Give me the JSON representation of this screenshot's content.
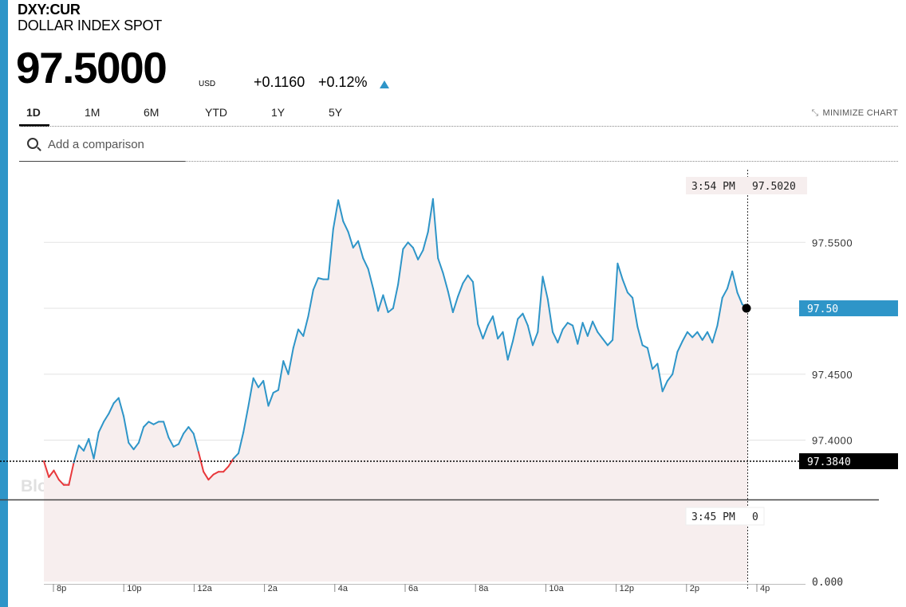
{
  "header": {
    "ticker": "DXY:CUR",
    "name": "DOLLAR INDEX SPOT",
    "price": "97.5000",
    "currency": "USD",
    "change": "+0.1160",
    "change_pct": "+0.12%"
  },
  "tabs": [
    {
      "label": "1D",
      "active": true
    },
    {
      "label": "1M",
      "active": false
    },
    {
      "label": "6M",
      "active": false
    },
    {
      "label": "YTD",
      "active": false
    },
    {
      "label": "1Y",
      "active": false
    },
    {
      "label": "5Y",
      "active": false
    }
  ],
  "minimize_label": "MINIMIZE CHART",
  "compare": {
    "placeholder": "Add a comparison"
  },
  "colors": {
    "accent": "#2e95c8",
    "up": "#2e95c8",
    "down": "#e8383b",
    "fill": "#f7eeee"
  },
  "watermark": "BloombergMarkets",
  "chart_data": {
    "type": "line",
    "y_ticks": [
      "97.5500",
      "97.4500",
      "97.4000"
    ],
    "y_ticks_values": [
      97.55,
      97.45,
      97.4
    ],
    "volume_tick": "0.000",
    "x_ticks": [
      "8p",
      "10p",
      "12a",
      "2a",
      "4a",
      "6a",
      "8a",
      "10a",
      "12p",
      "2p",
      "4p"
    ],
    "ylim": [
      97.355,
      97.61
    ],
    "previous_close": {
      "label": "97.3840",
      "value": 97.384
    },
    "current": {
      "label": "97.50",
      "value": 97.5
    },
    "cursor_price": {
      "time": "3:54 PM",
      "value": "97.5020"
    },
    "cursor_volume": {
      "time": "3:45 PM",
      "value": "0"
    },
    "series": [
      {
        "values": [
          97.384,
          97.372,
          97.377,
          97.37,
          97.366,
          97.366,
          97.383,
          97.396,
          97.392,
          97.401,
          97.386,
          97.406,
          97.414,
          97.42,
          97.428,
          97.432,
          97.418,
          97.398,
          97.393,
          97.398,
          97.41,
          97.414,
          97.412,
          97.414,
          97.414,
          97.402,
          97.395,
          97.397,
          97.405,
          97.41,
          97.405,
          97.391,
          97.376,
          97.37,
          97.374,
          97.376,
          97.376,
          97.38,
          97.386,
          97.39,
          97.406,
          97.426,
          97.447,
          97.44,
          97.445,
          97.426,
          97.436,
          97.438,
          97.46,
          97.45,
          97.47,
          97.484,
          97.479,
          97.494,
          97.514,
          97.523,
          97.522,
          97.522,
          97.56,
          97.582,
          97.566,
          97.558,
          97.546,
          97.551,
          97.538,
          97.53,
          97.515,
          97.498,
          97.51,
          97.497,
          97.5,
          97.518,
          97.545,
          97.55,
          97.546,
          97.537,
          97.544,
          97.558,
          97.583,
          97.538,
          97.527,
          97.513,
          97.497,
          97.509,
          97.519,
          97.525,
          97.52,
          97.488,
          97.477,
          97.487,
          97.494,
          97.477,
          97.482,
          97.461,
          97.475,
          97.492,
          97.496,
          97.487,
          97.472,
          97.482,
          97.524,
          97.507,
          97.482,
          97.474,
          97.484,
          97.489,
          97.487,
          97.473,
          97.489,
          97.479,
          97.49,
          97.482,
          97.477,
          97.472,
          97.476,
          97.534,
          97.522,
          97.512,
          97.508,
          97.486,
          97.472,
          97.47,
          97.454,
          97.458,
          97.437,
          97.445,
          97.45,
          97.467,
          97.475,
          97.482,
          97.478,
          97.482,
          97.476,
          97.482,
          97.474,
          97.487,
          97.508,
          97.515,
          97.528,
          97.512,
          97.503,
          97.5
        ]
      }
    ]
  }
}
